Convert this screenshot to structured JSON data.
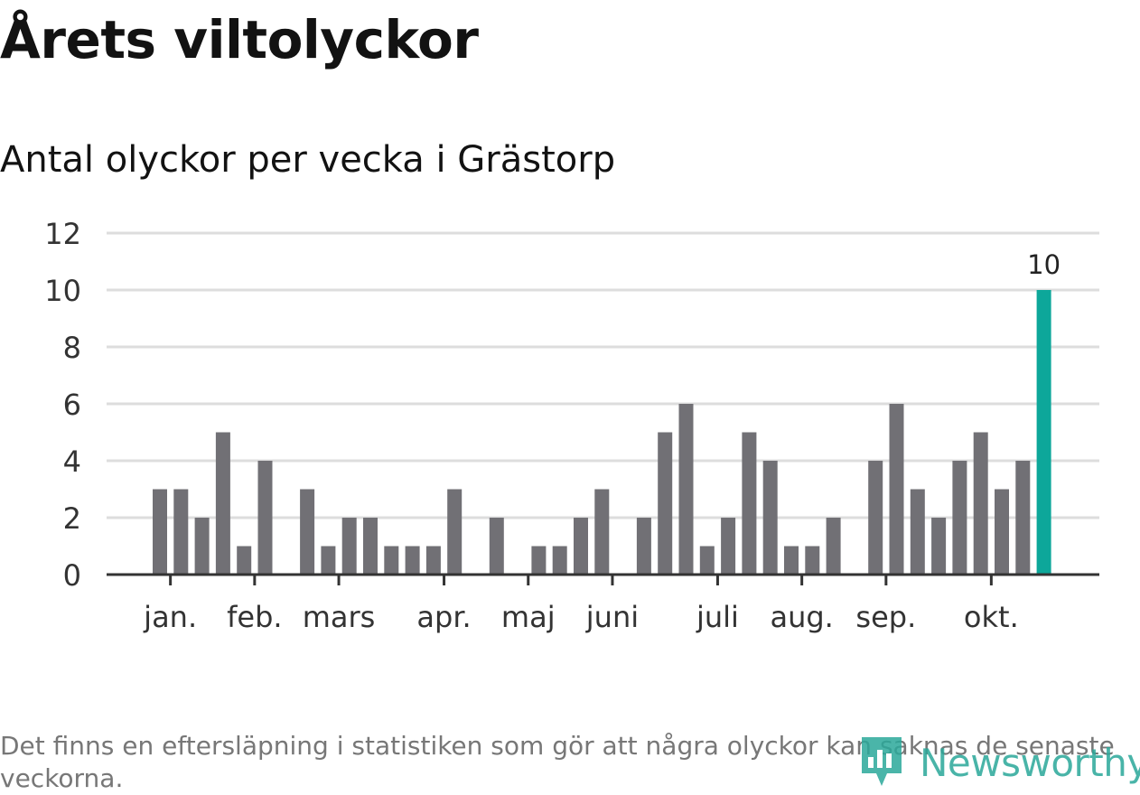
{
  "header": {
    "title": "Årets viltolyckor",
    "subtitle": "Antal olyckor per vecka i Grästorp"
  },
  "footnote": "Det finns en eftersläpning i statistiken som gör att några olyckor kan saknas de senaste veckorna.",
  "brand": {
    "name": "Newsworthy",
    "color": "#2aa89a"
  },
  "colors": {
    "bar": "#717075",
    "highlight": "#0da79a",
    "grid": "#dddddd",
    "axis": "#333333"
  },
  "chart_data": {
    "type": "bar",
    "ylim": [
      0,
      12
    ],
    "yticks": [
      0,
      2,
      4,
      6,
      8,
      10,
      12
    ],
    "grid": true,
    "x": [
      1,
      2,
      3,
      4,
      5,
      6,
      7,
      8,
      9,
      10,
      11,
      12,
      13,
      14,
      15,
      16,
      17,
      18,
      19,
      20,
      21,
      22,
      23,
      24,
      25,
      26,
      27,
      28,
      29,
      30,
      31,
      32,
      33,
      34,
      35,
      36,
      37,
      38,
      39,
      40,
      41,
      42,
      43
    ],
    "values": [
      3,
      3,
      2,
      5,
      1,
      4,
      0,
      3,
      1,
      2,
      2,
      1,
      1,
      1,
      3,
      0,
      2,
      0,
      1,
      1,
      2,
      3,
      0,
      2,
      5,
      6,
      1,
      2,
      5,
      4,
      1,
      1,
      2,
      0,
      4,
      6,
      3,
      2,
      4,
      5,
      3,
      4,
      10
    ],
    "highlight_index": 42,
    "data_labels": [
      {
        "index": 42,
        "text": "10"
      }
    ],
    "x_ticks": [
      {
        "label": "jan.",
        "x": 1.5
      },
      {
        "label": "feb.",
        "x": 5.5
      },
      {
        "label": "mars",
        "x": 9.5
      },
      {
        "label": "apr.",
        "x": 14.5
      },
      {
        "label": "maj",
        "x": 18.5
      },
      {
        "label": "juni",
        "x": 22.5
      },
      {
        "label": "juli",
        "x": 27.5
      },
      {
        "label": "aug.",
        "x": 31.5
      },
      {
        "label": "sep.",
        "x": 35.5
      },
      {
        "label": "okt.",
        "x": 40.5
      }
    ]
  }
}
